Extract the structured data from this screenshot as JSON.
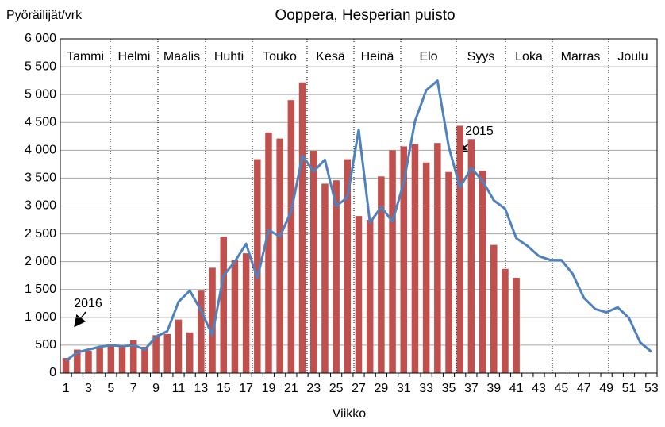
{
  "chart_data": {
    "type": "bar_line",
    "title": "Ooppera, Hesperian puisto",
    "y_label": "Pyöräilijät/vrk",
    "x_label": "Viikko",
    "months": [
      "Tammi",
      "Helmi",
      "Maalis",
      "Huhti",
      "Touko",
      "Kesä",
      "Heinä",
      "Elo",
      "Syys",
      "Loka",
      "Marras",
      "Joulu"
    ],
    "annotations": [
      "2016",
      "2015"
    ],
    "categories": [
      1,
      null,
      3,
      null,
      5,
      null,
      7,
      null,
      9,
      null,
      11,
      null,
      13,
      null,
      15,
      null,
      17,
      null,
      19,
      null,
      21,
      null,
      23,
      null,
      25,
      null,
      27,
      null,
      29,
      null,
      31,
      null,
      33,
      null,
      35,
      null,
      37,
      null,
      39,
      null,
      41,
      null,
      43,
      null,
      45,
      null,
      47,
      null,
      49,
      null,
      51,
      null,
      53
    ],
    "series": [
      {
        "name": "2016",
        "kind": "bar",
        "color": "#c0504d",
        "values": [
          270,
          420,
          400,
          450,
          500,
          480,
          590,
          470,
          680,
          700,
          960,
          730,
          1480,
          1890,
          2450,
          2030,
          2150,
          3840,
          4320,
          4210,
          4900,
          5220,
          3990,
          3400,
          3460,
          3840,
          2820,
          2750,
          3530,
          4000,
          4070,
          4110,
          3780,
          4130,
          3610,
          4440,
          4200,
          3630,
          2300,
          1870,
          1710,
          null,
          null,
          null,
          null,
          null,
          null,
          null,
          null,
          null,
          null,
          null,
          null
        ]
      },
      {
        "name": "2015",
        "kind": "line",
        "color": "#4f81bd",
        "values": [
          220,
          370,
          420,
          470,
          500,
          480,
          500,
          420,
          650,
          750,
          1280,
          1480,
          1120,
          680,
          1750,
          2000,
          2320,
          1700,
          2570,
          2450,
          2900,
          3900,
          3620,
          3830,
          3000,
          3150,
          4370,
          2700,
          2980,
          2720,
          3420,
          4520,
          5080,
          5250,
          4060,
          3330,
          3680,
          3450,
          3100,
          2950,
          2420,
          2280,
          2100,
          2030,
          2030,
          1780,
          1350,
          1150,
          1090,
          1180,
          990,
          550,
          380
        ]
      }
    ],
    "ylim": [
      0,
      6000
    ],
    "yticks": [
      0,
      500,
      {
        "value": 1000,
        "label": "1 000"
      },
      {
        "value": 1500,
        "label": "1 500"
      },
      {
        "value": 2000,
        "label": "2 000"
      },
      {
        "value": 2500,
        "label": "2 500"
      },
      {
        "value": 3000,
        "label": "3 000"
      },
      {
        "value": 3500,
        "label": "3 500"
      },
      {
        "value": 4000,
        "label": "4 000"
      },
      {
        "value": 4500,
        "label": "4 500"
      },
      {
        "value": 5000,
        "label": "5 000"
      },
      {
        "value": 5500,
        "label": "5 500"
      },
      {
        "value": 6000,
        "label": "6 000"
      }
    ],
    "grid": true
  }
}
